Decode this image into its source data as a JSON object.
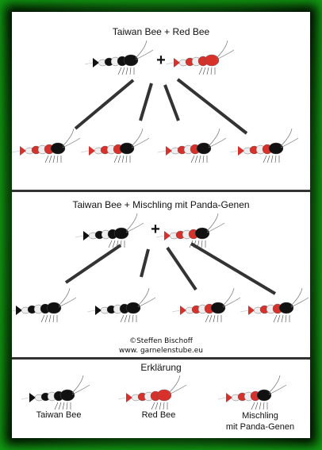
{
  "section1": {
    "title": "Taiwan Bee + Red Bee",
    "operator": "+",
    "parents": [
      "taiwan-bee",
      "red-bee"
    ],
    "offspring": [
      "mischling",
      "mischling",
      "mischling",
      "mischling"
    ]
  },
  "section2": {
    "title": "Taiwan Bee + Mischling mit Panda-Genen",
    "operator": "+",
    "parents": [
      "taiwan-bee",
      "mischling"
    ],
    "offspring": [
      "taiwan-bee",
      "taiwan-bee",
      "mischling",
      "mischling"
    ]
  },
  "credit": {
    "line1": "©Steffen Bischoff",
    "line2": "www. garnelenstube.eu"
  },
  "legend": {
    "title": "Erklärung",
    "items": [
      {
        "type": "taiwan-bee",
        "label": "Taiwan Bee"
      },
      {
        "type": "red-bee",
        "label": "Red Bee"
      },
      {
        "type": "mischling",
        "label": "Mischling\nmit Panda-Genen"
      }
    ]
  },
  "colors": {
    "frame_glow": "#12a012",
    "taiwan_bee": "#111111",
    "red_bee": "#d8302a",
    "mischling_red": "#d8302a",
    "mischling_black": "#111111"
  }
}
